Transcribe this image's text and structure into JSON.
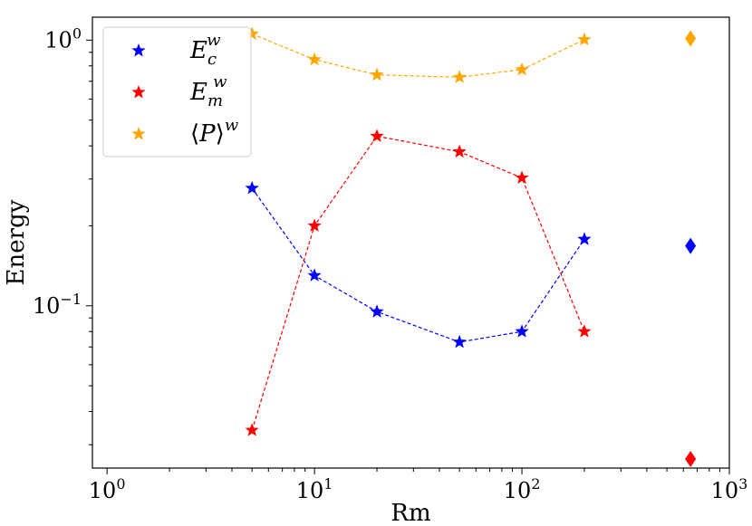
{
  "chart_data": {
    "type": "scatter",
    "title": "",
    "xlabel": "Rm",
    "ylabel": "Energy",
    "xscale": "log",
    "yscale": "log",
    "xlim": [
      0.85,
      1000
    ],
    "ylim": [
      0.0245,
      1.22
    ],
    "x_ticks": [
      {
        "value": 1,
        "base": "10",
        "exp": "0"
      },
      {
        "value": 10,
        "base": "10",
        "exp": "1"
      },
      {
        "value": 100,
        "base": "10",
        "exp": "2"
      },
      {
        "value": 1000,
        "base": "10",
        "exp": "3"
      }
    ],
    "y_ticks": [
      {
        "value": 0.1,
        "base": "10",
        "exp": "−1"
      },
      {
        "value": 1,
        "base": "10",
        "exp": "0"
      }
    ],
    "legend_position": "top-left",
    "series": [
      {
        "name": "E_c^w",
        "legend_main": "E",
        "legend_sub": "c",
        "legend_sup": "w",
        "color": "#0000ff",
        "x": [
          5,
          10,
          20,
          50,
          100,
          200
        ],
        "values": [
          0.277,
          0.13,
          0.095,
          0.073,
          0.08,
          0.178
        ],
        "end_marker": {
          "x": 650,
          "value": 0.168
        }
      },
      {
        "name": "E_m^w",
        "legend_main": "E",
        "legend_sub": "m",
        "legend_sup": "w",
        "color": "#ff0000",
        "x": [
          5,
          10,
          20,
          50,
          100,
          200
        ],
        "values": [
          0.034,
          0.2,
          0.435,
          0.38,
          0.303,
          0.08
        ],
        "end_marker": {
          "x": 650,
          "value": 0.0265
        }
      },
      {
        "name": "<P>^w",
        "legend_main": "P",
        "legend_sub": "",
        "legend_sup": "w",
        "color": "#ffa500",
        "x": [
          5,
          10,
          20,
          50,
          100,
          200
        ],
        "values": [
          1.055,
          0.845,
          0.74,
          0.725,
          0.775,
          1.005
        ],
        "end_marker": {
          "x": 650,
          "value": 1.015
        }
      }
    ]
  }
}
